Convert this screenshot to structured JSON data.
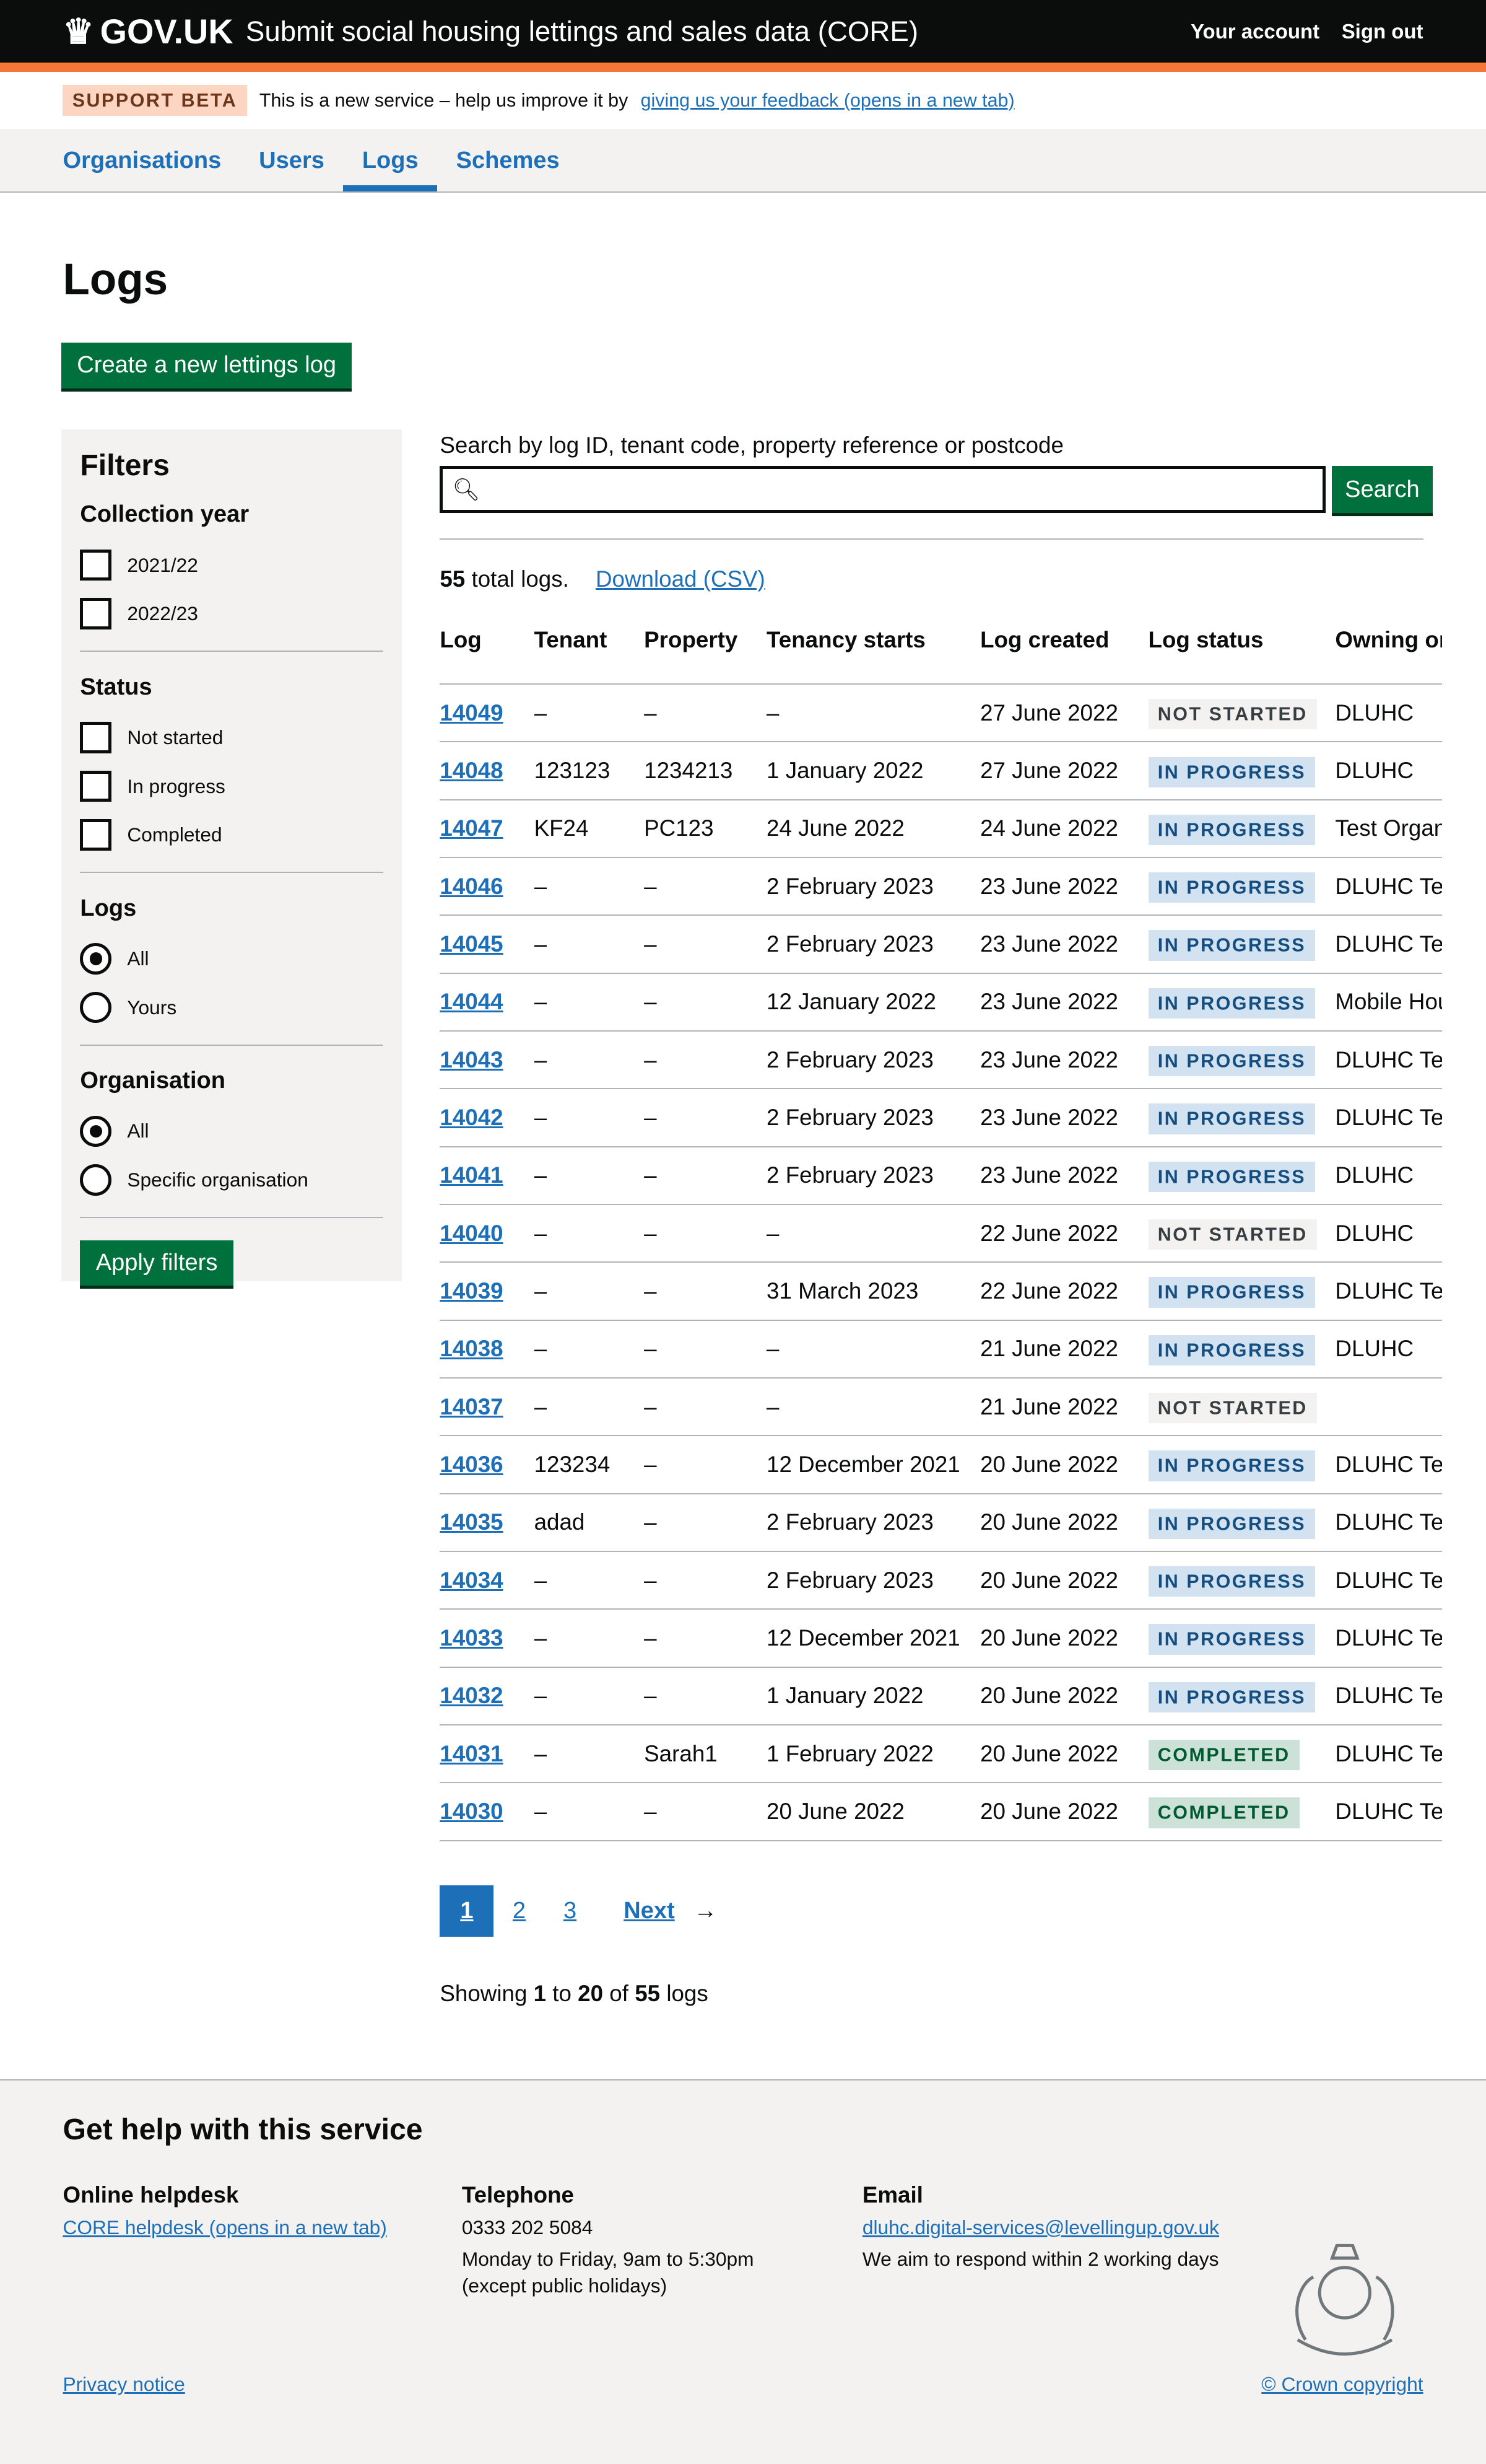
{
  "header": {
    "logo": "GOV.UK",
    "service": "Submit social housing lettings and sales data (CORE)",
    "your_account": "Your account",
    "sign_out": "Sign out"
  },
  "beta": {
    "tag": "SUPPORT BETA",
    "text": "This is a new service – help us improve it by",
    "link": "giving us your feedback (opens in a new tab)"
  },
  "nav": [
    {
      "label": "Organisations"
    },
    {
      "label": "Users"
    },
    {
      "label": "Logs",
      "active": true
    },
    {
      "label": "Schemes"
    }
  ],
  "page_title": "Logs",
  "create_button": "Create a new lettings log",
  "filters": {
    "title": "Filters",
    "collection_year": {
      "label": "Collection year",
      "options": [
        "2021/22",
        "2022/23"
      ]
    },
    "status": {
      "label": "Status",
      "options": [
        "Not started",
        "In progress",
        "Completed"
      ]
    },
    "logs": {
      "label": "Logs",
      "options": [
        "All",
        "Yours"
      ],
      "selected": "All"
    },
    "organisation": {
      "label": "Organisation",
      "options": [
        "All",
        "Specific organisation"
      ],
      "selected": "All"
    },
    "apply": "Apply filters"
  },
  "search": {
    "label": "Search by log ID, tenant code, property reference or postcode",
    "value": "",
    "button": "Search"
  },
  "summary": {
    "count": "55",
    "text": "total logs.",
    "download": "Download (CSV)"
  },
  "table": {
    "headers": [
      "Log",
      "Tenant",
      "Property",
      "Tenancy starts",
      "Log created",
      "Log status",
      "Owning or"
    ],
    "rows": [
      [
        "14049",
        "–",
        "–",
        "–",
        "27 June 2022",
        "NOT STARTED",
        "DLUHC"
      ],
      [
        "14048",
        "123123",
        "1234213",
        "1 January 2022",
        "27 June 2022",
        "IN PROGRESS",
        "DLUHC"
      ],
      [
        "14047",
        "KF24",
        "PC123",
        "24 June 2022",
        "24 June 2022",
        "IN PROGRESS",
        "Test Organ"
      ],
      [
        "14046",
        "–",
        "–",
        "2 February 2023",
        "23 June 2022",
        "IN PROGRESS",
        "DLUHC Tes"
      ],
      [
        "14045",
        "–",
        "–",
        "2 February 2023",
        "23 June 2022",
        "IN PROGRESS",
        "DLUHC Tes"
      ],
      [
        "14044",
        "–",
        "–",
        "12 January 2022",
        "23 June 2022",
        "IN PROGRESS",
        "Mobile Hou"
      ],
      [
        "14043",
        "–",
        "–",
        "2 February 2023",
        "23 June 2022",
        "IN PROGRESS",
        "DLUHC Tes"
      ],
      [
        "14042",
        "–",
        "–",
        "2 February 2023",
        "23 June 2022",
        "IN PROGRESS",
        "DLUHC Tes"
      ],
      [
        "14041",
        "–",
        "–",
        "2 February 2023",
        "23 June 2022",
        "IN PROGRESS",
        "DLUHC"
      ],
      [
        "14040",
        "–",
        "–",
        "–",
        "22 June 2022",
        "NOT STARTED",
        "DLUHC"
      ],
      [
        "14039",
        "–",
        "–",
        "31 March 2023",
        "22 June 2022",
        "IN PROGRESS",
        "DLUHC Tes"
      ],
      [
        "14038",
        "–",
        "–",
        "–",
        "21 June 2022",
        "IN PROGRESS",
        "DLUHC"
      ],
      [
        "14037",
        "–",
        "–",
        "–",
        "21 June 2022",
        "NOT STARTED",
        ""
      ],
      [
        "14036",
        "123234",
        "–",
        "12 December 2021",
        "20 June 2022",
        "IN PROGRESS",
        "DLUHC Tes"
      ],
      [
        "14035",
        "adad",
        "–",
        "2 February 2023",
        "20 June 2022",
        "IN PROGRESS",
        "DLUHC Tes"
      ],
      [
        "14034",
        "–",
        "–",
        "2 February 2023",
        "20 June 2022",
        "IN PROGRESS",
        "DLUHC Tes"
      ],
      [
        "14033",
        "–",
        "–",
        "12 December 2021",
        "20 June 2022",
        "IN PROGRESS",
        "DLUHC Tes"
      ],
      [
        "14032",
        "–",
        "–",
        "1 January 2022",
        "20 June 2022",
        "IN PROGRESS",
        "DLUHC Tes"
      ],
      [
        "14031",
        "–",
        "Sarah1",
        "1 February 2022",
        "20 June 2022",
        "COMPLETED",
        "DLUHC Tes"
      ],
      [
        "14030",
        "–",
        "–",
        "20 June 2022",
        "20 June 2022",
        "COMPLETED",
        "DLUHC Tes"
      ]
    ]
  },
  "pagination": {
    "pages": [
      "1",
      "2",
      "3"
    ],
    "current": "1",
    "next": "Next"
  },
  "showing": {
    "prefix": "Showing",
    "from": "1",
    "to_word": "to",
    "to": "20",
    "of_word": "of",
    "total": "55",
    "suffix": "logs"
  },
  "footer": {
    "title": "Get help with this service",
    "helpdesk": {
      "title": "Online helpdesk",
      "link": "CORE helpdesk (opens in a new tab)"
    },
    "telephone": {
      "title": "Telephone",
      "number": "0333 202 5084",
      "hours": "Monday to Friday, 9am to 5:30pm",
      "note": "(except public holidays)"
    },
    "email": {
      "title": "Email",
      "address": "dluhc.digital-services@levellingup.gov.uk",
      "note": "We aim to respond within 2 working days"
    },
    "privacy": "Privacy notice",
    "copyright": "© Crown copyright"
  },
  "colors": {
    "header": "#0b0c0c",
    "accent": "#f47738",
    "link": "#1d70b8",
    "button": "#00703c"
  }
}
